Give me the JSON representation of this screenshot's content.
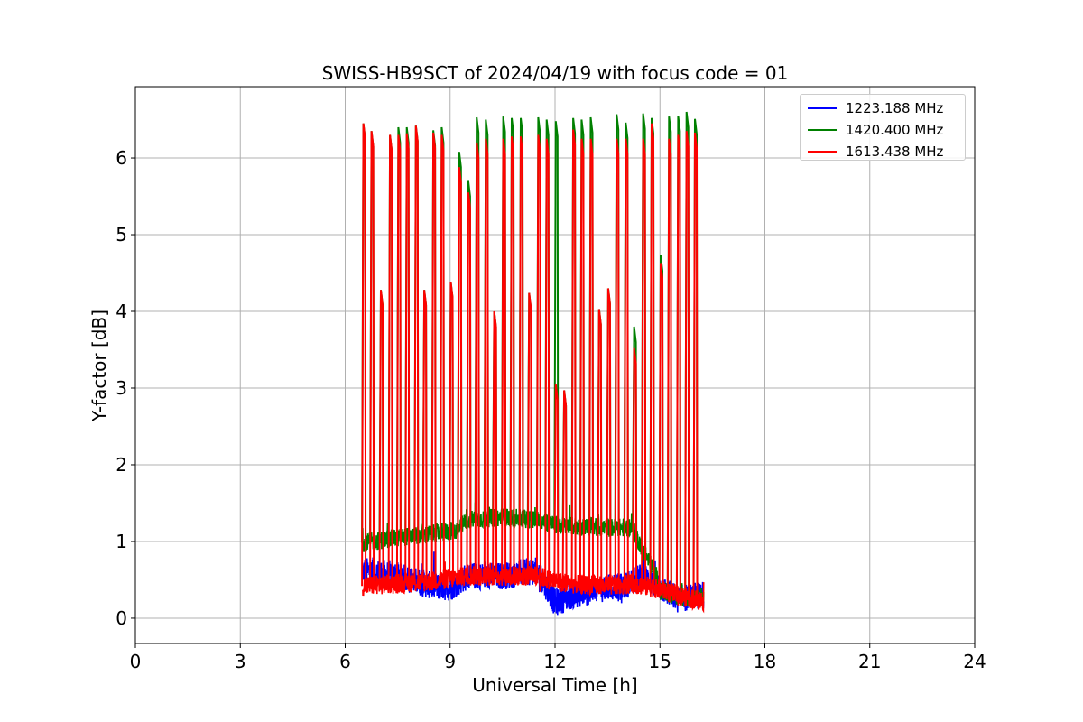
{
  "chart_data": {
    "type": "line",
    "title": "SWISS-HB9SCT of 2024/04/19 with focus code = 01",
    "xlabel": "Universal Time [h]",
    "ylabel": "Y-factor [dB]",
    "xlim": [
      0,
      24
    ],
    "ylim": [
      -0.33,
      6.93
    ],
    "xticks": [
      0,
      3,
      6,
      9,
      12,
      15,
      18,
      21,
      24
    ],
    "xtick_labels": [
      "0",
      "3",
      "6",
      "9",
      "12",
      "15",
      "18",
      "21",
      "24"
    ],
    "yticks": [
      0,
      1,
      2,
      3,
      4,
      5,
      6
    ],
    "ytick_labels": [
      "0",
      "1",
      "2",
      "3",
      "4",
      "5",
      "6"
    ],
    "grid": true,
    "legend_position": "top-right",
    "data_start": 6.5,
    "data_end": 16.25,
    "series": [
      {
        "name": "1223.188 MHz",
        "color": "#0000ff",
        "baseline": [
          [
            6.5,
            0.62
          ],
          [
            7.5,
            0.55
          ],
          [
            8.5,
            0.42
          ],
          [
            9.0,
            0.4
          ],
          [
            9.5,
            0.55
          ],
          [
            10.5,
            0.55
          ],
          [
            11.5,
            0.62
          ],
          [
            12.0,
            0.2
          ],
          [
            12.5,
            0.3
          ],
          [
            13.5,
            0.4
          ],
          [
            14.0,
            0.42
          ],
          [
            14.5,
            0.55
          ],
          [
            15.0,
            0.4
          ],
          [
            15.5,
            0.25
          ],
          [
            16.25,
            0.3
          ]
        ],
        "noise": 0.18,
        "peaks": []
      },
      {
        "name": "1420.400 MHz",
        "color": "#008000",
        "baseline": [
          [
            6.5,
            0.98
          ],
          [
            7.5,
            1.05
          ],
          [
            8.5,
            1.1
          ],
          [
            9.2,
            1.15
          ],
          [
            9.5,
            1.28
          ],
          [
            10.5,
            1.32
          ],
          [
            11.5,
            1.28
          ],
          [
            12.0,
            1.22
          ],
          [
            12.5,
            1.2
          ],
          [
            13.5,
            1.18
          ],
          [
            14.2,
            1.18
          ],
          [
            14.9,
            0.55
          ],
          [
            15.0,
            0.35
          ],
          [
            15.5,
            0.28
          ],
          [
            16.25,
            0.25
          ]
        ],
        "noise": 0.12,
        "peaks": [
          [
            6.52,
            6.45
          ],
          [
            6.75,
            6.35
          ],
          [
            7.02,
            4.28
          ],
          [
            7.28,
            6.3
          ],
          [
            7.52,
            6.4
          ],
          [
            7.76,
            6.4
          ],
          [
            8.02,
            6.42
          ],
          [
            8.26,
            4.28
          ],
          [
            8.52,
            6.36
          ],
          [
            8.76,
            6.4
          ],
          [
            9.02,
            4.38
          ],
          [
            9.26,
            6.08
          ],
          [
            9.52,
            5.7
          ],
          [
            9.76,
            6.53
          ],
          [
            10.02,
            6.5
          ],
          [
            10.26,
            4.0
          ],
          [
            10.52,
            6.54
          ],
          [
            10.76,
            6.52
          ],
          [
            11.02,
            6.52
          ],
          [
            11.26,
            4.24
          ],
          [
            11.52,
            6.53
          ],
          [
            11.76,
            6.5
          ],
          [
            12.02,
            6.48
          ],
          [
            12.26,
            2.97
          ],
          [
            12.52,
            6.52
          ],
          [
            12.76,
            6.5
          ],
          [
            13.02,
            6.53
          ],
          [
            13.26,
            4.03
          ],
          [
            13.52,
            4.3
          ],
          [
            13.76,
            6.57
          ],
          [
            14.02,
            6.46
          ],
          [
            14.26,
            3.8
          ],
          [
            14.52,
            6.58
          ],
          [
            14.76,
            6.52
          ],
          [
            15.02,
            4.73
          ],
          [
            15.26,
            6.54
          ],
          [
            15.52,
            6.55
          ],
          [
            15.76,
            6.6
          ],
          [
            16.0,
            6.51
          ]
        ]
      },
      {
        "name": "1613.438 MHz",
        "color": "#ff0000",
        "baseline": [
          [
            6.5,
            0.42
          ],
          [
            7.5,
            0.45
          ],
          [
            8.5,
            0.48
          ],
          [
            9.5,
            0.55
          ],
          [
            10.5,
            0.55
          ],
          [
            11.5,
            0.55
          ],
          [
            12.0,
            0.48
          ],
          [
            12.5,
            0.45
          ],
          [
            13.5,
            0.42
          ],
          [
            14.2,
            0.45
          ],
          [
            14.8,
            0.4
          ],
          [
            15.5,
            0.3
          ],
          [
            16.25,
            0.22
          ]
        ],
        "noise": 0.13,
        "peaks": [
          [
            6.52,
            6.45
          ],
          [
            6.75,
            6.35
          ],
          [
            7.02,
            4.28
          ],
          [
            7.28,
            6.3
          ],
          [
            7.52,
            6.3
          ],
          [
            7.76,
            6.32
          ],
          [
            8.02,
            6.42
          ],
          [
            8.26,
            4.28
          ],
          [
            8.52,
            6.33
          ],
          [
            8.76,
            6.3
          ],
          [
            9.02,
            4.38
          ],
          [
            9.26,
            5.88
          ],
          [
            9.52,
            5.55
          ],
          [
            9.76,
            6.2
          ],
          [
            10.02,
            6.25
          ],
          [
            10.26,
            4.0
          ],
          [
            10.52,
            6.25
          ],
          [
            10.76,
            6.28
          ],
          [
            11.02,
            6.28
          ],
          [
            11.26,
            4.24
          ],
          [
            11.52,
            6.3
          ],
          [
            11.76,
            6.25
          ],
          [
            12.02,
            3.05
          ],
          [
            12.26,
            2.97
          ],
          [
            12.52,
            6.37
          ],
          [
            12.76,
            6.25
          ],
          [
            13.02,
            6.25
          ],
          [
            13.26,
            4.03
          ],
          [
            13.52,
            4.3
          ],
          [
            13.76,
            6.25
          ],
          [
            14.02,
            6.25
          ],
          [
            14.26,
            3.52
          ],
          [
            14.52,
            6.25
          ],
          [
            14.76,
            6.45
          ],
          [
            15.02,
            4.63
          ],
          [
            15.26,
            6.25
          ],
          [
            15.52,
            6.3
          ],
          [
            15.76,
            6.35
          ],
          [
            16.0,
            6.33
          ]
        ]
      }
    ]
  }
}
